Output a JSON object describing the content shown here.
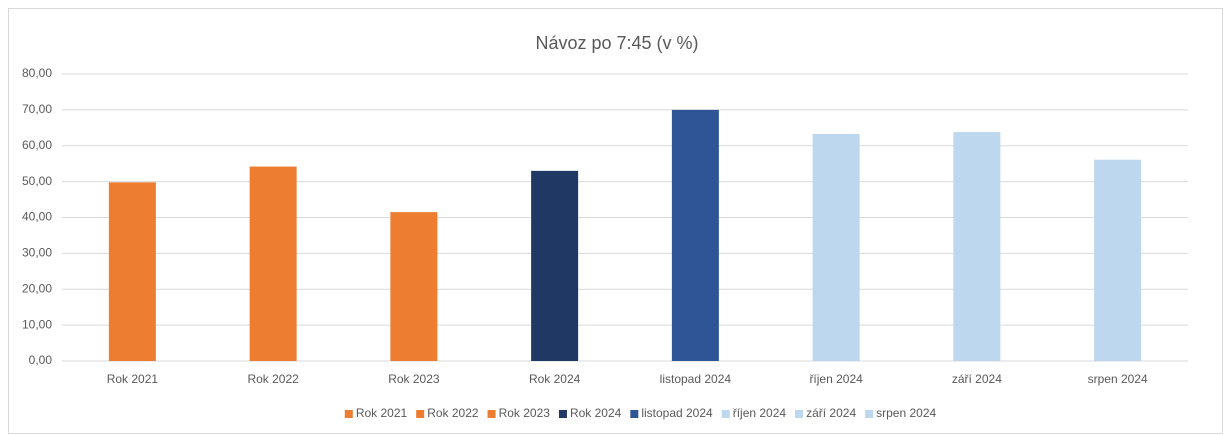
{
  "chart_data": {
    "type": "bar",
    "title": "Návoz po 7:45 (v %)",
    "categories": [
      "Rok 2021",
      "Rok 2022",
      "Rok 2023",
      "Rok 2024",
      "listopad 2024",
      "říjen 2024",
      "září 2024",
      "srpen 2024"
    ],
    "values": [
      49.8,
      54.2,
      41.5,
      53.0,
      70.0,
      63.3,
      63.8,
      56.1
    ],
    "colors": [
      "#ed7d31",
      "#ed7d31",
      "#ed7d31",
      "#203864",
      "#2f5597",
      "#bdd7ee",
      "#bdd7ee",
      "#bdd7ee"
    ],
    "ylim": [
      0,
      80
    ],
    "yticks": [
      {
        "value": 0,
        "label": "0,00"
      },
      {
        "value": 10,
        "label": "10,00"
      },
      {
        "value": 20,
        "label": "20,00"
      },
      {
        "value": 30,
        "label": "30,00"
      },
      {
        "value": 40,
        "label": "40,00"
      },
      {
        "value": 50,
        "label": "50,00"
      },
      {
        "value": 60,
        "label": "60,00"
      },
      {
        "value": 70,
        "label": "70,00"
      },
      {
        "value": 80,
        "label": "80,00"
      }
    ],
    "grid": true,
    "legend": "bottom"
  }
}
